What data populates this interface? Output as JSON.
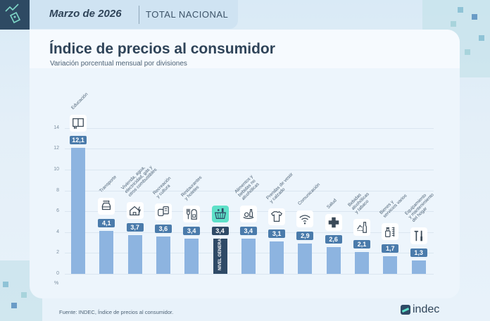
{
  "header": {
    "date": "Marzo de 2026",
    "scope": "TOTAL NACIONAL",
    "corner_icon": "price-tag-trend-icon"
  },
  "title": "Índice de precios al consumidor",
  "subtitle": "Variación porcentual mensual por divisiones",
  "footer": {
    "source": "Fuente: INDEC, Índice de precios al consumidor.",
    "logo_text": "indec"
  },
  "colors": {
    "bar": "#8db4e0",
    "bar_general": "#2f4a66",
    "badge": "#4a7bab",
    "accent": "#5ee0c8"
  },
  "chart_data": {
    "type": "bar",
    "title": "Índice de precios al consumidor",
    "subtitle": "Variación porcentual mensual por divisiones",
    "xlabel": "",
    "ylabel": "%",
    "ylim": [
      0,
      14
    ],
    "yticks": [
      0,
      2,
      4,
      6,
      8,
      10,
      12,
      14
    ],
    "grid": true,
    "categories": [
      "Educación",
      "Transporte",
      "Vivienda, agua, electricidad, gas y otros combustibles",
      "Recreación y cultura",
      "Restaurantes y hoteles",
      "NIVEL GENERAL",
      "Alimentos y bebidas no alcohólicas",
      "Prendas de vestir y calzado",
      "Comunicación",
      "Salud",
      "Bebidas alcohólicas y tabaco",
      "Bienes y servicios varios",
      "Equipamiento y mantenimiento del hogar"
    ],
    "category_labels_display": [
      "Educación",
      "Transporte",
      "Vivienda, agua,\nelectricidad, gas y\notros combustibles",
      "Recreación\ny cultura",
      "Restaurantes\ny hoteles",
      "",
      "Alimentos y\nbebidas no\nalcohólicas",
      "Prendas de vestir\ny calzado",
      "Comunicación",
      "Salud",
      "Bebidas\nalcohólicas\ny tabaco",
      "Bienes y\nservicios varios",
      "Equipamiento\ny mantenimiento\ndel hogar"
    ],
    "values": [
      12.1,
      4.1,
      3.7,
      3.6,
      3.4,
      3.4,
      3.4,
      3.1,
      2.9,
      2.6,
      2.1,
      1.7,
      1.3
    ],
    "value_labels": [
      "12,1",
      "4,1",
      "3,7",
      "3,6",
      "3,4",
      "3,4",
      "3,4",
      "3,1",
      "2,9",
      "2,6",
      "2,1",
      "1,7",
      "1,3"
    ],
    "icons": [
      "book-icon",
      "car-icon",
      "house-energy-icon",
      "theater-masks-icon",
      "fork-hotel-icon",
      "shopping-basket-icon",
      "food-bottle-icon",
      "tshirt-icon",
      "wifi-icon",
      "health-cross-icon",
      "bottle-icon",
      "cosmetics-icon",
      "tools-icon"
    ],
    "highlight_index": 5,
    "highlight_label": "NIVEL GENERAL"
  }
}
